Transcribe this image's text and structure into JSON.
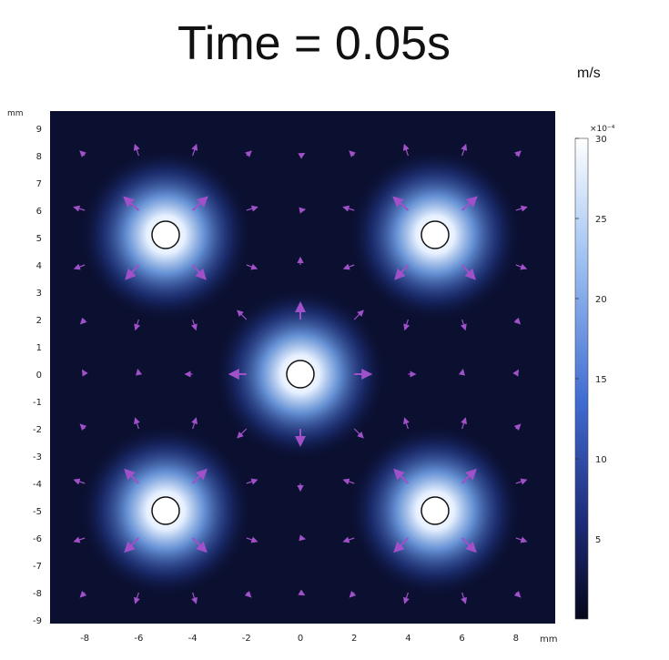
{
  "title": "Time = 0.05s",
  "units": {
    "colorbar": "m/s",
    "x_axis": "mm",
    "y_axis": "mm",
    "colorbar_exponent": "×10⁻⁴"
  },
  "chart_data": {
    "type": "heatmap",
    "title": "Time = 0.05s",
    "xlabel": "mm",
    "ylabel": "mm",
    "xlim": [
      -9,
      9
    ],
    "ylim": [
      -9,
      9.5
    ],
    "x_ticks": [
      -8,
      -6,
      -4,
      -2,
      0,
      2,
      4,
      6,
      8
    ],
    "y_ticks": [
      -9,
      -8,
      -7,
      -6,
      -5,
      -4,
      -3,
      -2,
      -1,
      0,
      1,
      2,
      3,
      4,
      5,
      6,
      7,
      8,
      9
    ],
    "colorbar": {
      "label": "m/s",
      "multiplier": "×10⁻⁴",
      "range": [
        0,
        30
      ],
      "ticks": [
        5,
        10,
        15,
        20,
        25,
        30
      ],
      "colors": [
        "#05071a",
        "#1d2a78",
        "#3f6bd1",
        "#9fc2f2",
        "#ffffff"
      ]
    },
    "sources": [
      {
        "x": -5,
        "y": 5.1
      },
      {
        "x": 5,
        "y": 5.1
      },
      {
        "x": 0,
        "y": 0
      },
      {
        "x": -5,
        "y": -5
      },
      {
        "x": 5,
        "y": -5
      }
    ],
    "arrow_color": "#a050c8",
    "grid": false
  }
}
